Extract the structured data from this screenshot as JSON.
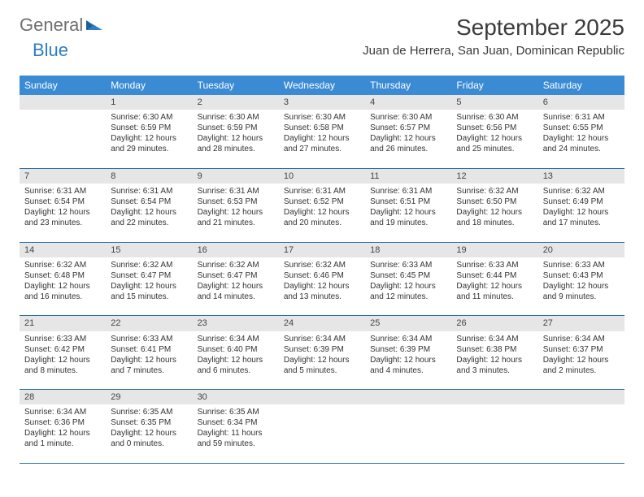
{
  "logo": {
    "word1": "General",
    "word2": "Blue"
  },
  "title": "September 2025",
  "location": "Juan de Herrera, San Juan, Dominican Republic",
  "colors": {
    "header_bg": "#3b8bd4",
    "header_text": "#ffffff",
    "daynum_bg": "#e6e6e6",
    "row_border": "#2f6fa8",
    "logo_gray": "#6f6f6f",
    "logo_blue": "#2f7dc4",
    "text": "#333333",
    "page_bg": "#ffffff"
  },
  "weekdays": [
    "Sunday",
    "Monday",
    "Tuesday",
    "Wednesday",
    "Thursday",
    "Friday",
    "Saturday"
  ],
  "weeks": [
    {
      "nums": [
        "",
        "1",
        "2",
        "3",
        "4",
        "5",
        "6"
      ],
      "cells": [
        null,
        {
          "sunrise": "Sunrise: 6:30 AM",
          "sunset": "Sunset: 6:59 PM",
          "day1": "Daylight: 12 hours",
          "day2": "and 29 minutes."
        },
        {
          "sunrise": "Sunrise: 6:30 AM",
          "sunset": "Sunset: 6:59 PM",
          "day1": "Daylight: 12 hours",
          "day2": "and 28 minutes."
        },
        {
          "sunrise": "Sunrise: 6:30 AM",
          "sunset": "Sunset: 6:58 PM",
          "day1": "Daylight: 12 hours",
          "day2": "and 27 minutes."
        },
        {
          "sunrise": "Sunrise: 6:30 AM",
          "sunset": "Sunset: 6:57 PM",
          "day1": "Daylight: 12 hours",
          "day2": "and 26 minutes."
        },
        {
          "sunrise": "Sunrise: 6:30 AM",
          "sunset": "Sunset: 6:56 PM",
          "day1": "Daylight: 12 hours",
          "day2": "and 25 minutes."
        },
        {
          "sunrise": "Sunrise: 6:31 AM",
          "sunset": "Sunset: 6:55 PM",
          "day1": "Daylight: 12 hours",
          "day2": "and 24 minutes."
        }
      ]
    },
    {
      "nums": [
        "7",
        "8",
        "9",
        "10",
        "11",
        "12",
        "13"
      ],
      "cells": [
        {
          "sunrise": "Sunrise: 6:31 AM",
          "sunset": "Sunset: 6:54 PM",
          "day1": "Daylight: 12 hours",
          "day2": "and 23 minutes."
        },
        {
          "sunrise": "Sunrise: 6:31 AM",
          "sunset": "Sunset: 6:54 PM",
          "day1": "Daylight: 12 hours",
          "day2": "and 22 minutes."
        },
        {
          "sunrise": "Sunrise: 6:31 AM",
          "sunset": "Sunset: 6:53 PM",
          "day1": "Daylight: 12 hours",
          "day2": "and 21 minutes."
        },
        {
          "sunrise": "Sunrise: 6:31 AM",
          "sunset": "Sunset: 6:52 PM",
          "day1": "Daylight: 12 hours",
          "day2": "and 20 minutes."
        },
        {
          "sunrise": "Sunrise: 6:31 AM",
          "sunset": "Sunset: 6:51 PM",
          "day1": "Daylight: 12 hours",
          "day2": "and 19 minutes."
        },
        {
          "sunrise": "Sunrise: 6:32 AM",
          "sunset": "Sunset: 6:50 PM",
          "day1": "Daylight: 12 hours",
          "day2": "and 18 minutes."
        },
        {
          "sunrise": "Sunrise: 6:32 AM",
          "sunset": "Sunset: 6:49 PM",
          "day1": "Daylight: 12 hours",
          "day2": "and 17 minutes."
        }
      ]
    },
    {
      "nums": [
        "14",
        "15",
        "16",
        "17",
        "18",
        "19",
        "20"
      ],
      "cells": [
        {
          "sunrise": "Sunrise: 6:32 AM",
          "sunset": "Sunset: 6:48 PM",
          "day1": "Daylight: 12 hours",
          "day2": "and 16 minutes."
        },
        {
          "sunrise": "Sunrise: 6:32 AM",
          "sunset": "Sunset: 6:47 PM",
          "day1": "Daylight: 12 hours",
          "day2": "and 15 minutes."
        },
        {
          "sunrise": "Sunrise: 6:32 AM",
          "sunset": "Sunset: 6:47 PM",
          "day1": "Daylight: 12 hours",
          "day2": "and 14 minutes."
        },
        {
          "sunrise": "Sunrise: 6:32 AM",
          "sunset": "Sunset: 6:46 PM",
          "day1": "Daylight: 12 hours",
          "day2": "and 13 minutes."
        },
        {
          "sunrise": "Sunrise: 6:33 AM",
          "sunset": "Sunset: 6:45 PM",
          "day1": "Daylight: 12 hours",
          "day2": "and 12 minutes."
        },
        {
          "sunrise": "Sunrise: 6:33 AM",
          "sunset": "Sunset: 6:44 PM",
          "day1": "Daylight: 12 hours",
          "day2": "and 11 minutes."
        },
        {
          "sunrise": "Sunrise: 6:33 AM",
          "sunset": "Sunset: 6:43 PM",
          "day1": "Daylight: 12 hours",
          "day2": "and 9 minutes."
        }
      ]
    },
    {
      "nums": [
        "21",
        "22",
        "23",
        "24",
        "25",
        "26",
        "27"
      ],
      "cells": [
        {
          "sunrise": "Sunrise: 6:33 AM",
          "sunset": "Sunset: 6:42 PM",
          "day1": "Daylight: 12 hours",
          "day2": "and 8 minutes."
        },
        {
          "sunrise": "Sunrise: 6:33 AM",
          "sunset": "Sunset: 6:41 PM",
          "day1": "Daylight: 12 hours",
          "day2": "and 7 minutes."
        },
        {
          "sunrise": "Sunrise: 6:34 AM",
          "sunset": "Sunset: 6:40 PM",
          "day1": "Daylight: 12 hours",
          "day2": "and 6 minutes."
        },
        {
          "sunrise": "Sunrise: 6:34 AM",
          "sunset": "Sunset: 6:39 PM",
          "day1": "Daylight: 12 hours",
          "day2": "and 5 minutes."
        },
        {
          "sunrise": "Sunrise: 6:34 AM",
          "sunset": "Sunset: 6:39 PM",
          "day1": "Daylight: 12 hours",
          "day2": "and 4 minutes."
        },
        {
          "sunrise": "Sunrise: 6:34 AM",
          "sunset": "Sunset: 6:38 PM",
          "day1": "Daylight: 12 hours",
          "day2": "and 3 minutes."
        },
        {
          "sunrise": "Sunrise: 6:34 AM",
          "sunset": "Sunset: 6:37 PM",
          "day1": "Daylight: 12 hours",
          "day2": "and 2 minutes."
        }
      ]
    },
    {
      "nums": [
        "28",
        "29",
        "30",
        "",
        "",
        "",
        ""
      ],
      "cells": [
        {
          "sunrise": "Sunrise: 6:34 AM",
          "sunset": "Sunset: 6:36 PM",
          "day1": "Daylight: 12 hours",
          "day2": "and 1 minute."
        },
        {
          "sunrise": "Sunrise: 6:35 AM",
          "sunset": "Sunset: 6:35 PM",
          "day1": "Daylight: 12 hours",
          "day2": "and 0 minutes."
        },
        {
          "sunrise": "Sunrise: 6:35 AM",
          "sunset": "Sunset: 6:34 PM",
          "day1": "Daylight: 11 hours",
          "day2": "and 59 minutes."
        },
        null,
        null,
        null,
        null
      ]
    }
  ]
}
